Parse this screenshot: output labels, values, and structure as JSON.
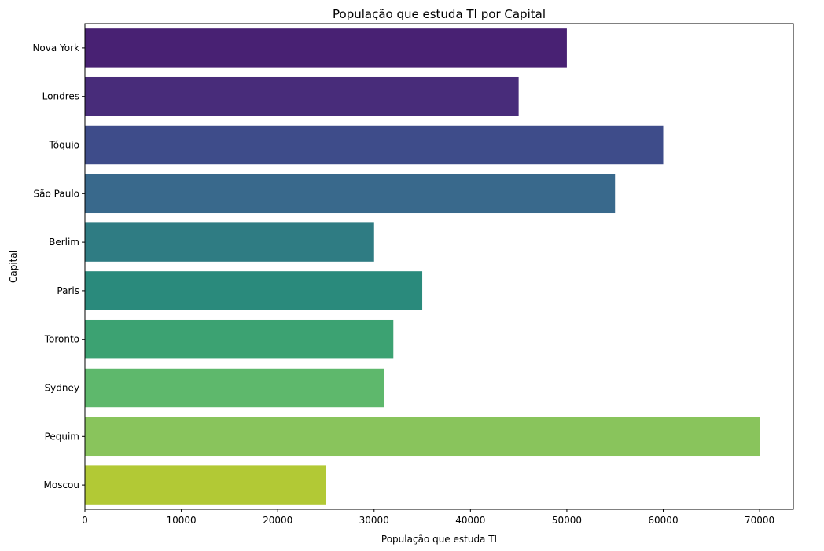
{
  "chart_data": {
    "type": "bar",
    "orientation": "horizontal",
    "title": "População que estuda TI por Capital",
    "xlabel": "População que estuda TI",
    "ylabel": "Capital",
    "categories": [
      "Nova York",
      "Londres",
      "Tóquio",
      "São Paulo",
      "Berlim",
      "Paris",
      "Toronto",
      "Sydney",
      "Pequim",
      "Moscou"
    ],
    "values": [
      50000,
      45000,
      60000,
      55000,
      30000,
      35000,
      32000,
      31000,
      70000,
      25000
    ],
    "colors": [
      "#482173",
      "#482C7A",
      "#3E4C8A",
      "#39698C",
      "#2F7C83",
      "#2A8A7C",
      "#3CA272",
      "#5EB86C",
      "#89C45C",
      "#B2C935"
    ],
    "xlim": [
      0,
      73500
    ],
    "xticks": [
      0,
      10000,
      20000,
      30000,
      40000,
      50000,
      60000,
      70000
    ],
    "xtick_labels": [
      "0",
      "10000",
      "20000",
      "30000",
      "40000",
      "50000",
      "60000",
      "70000"
    ],
    "grid": false,
    "legend": false
  }
}
